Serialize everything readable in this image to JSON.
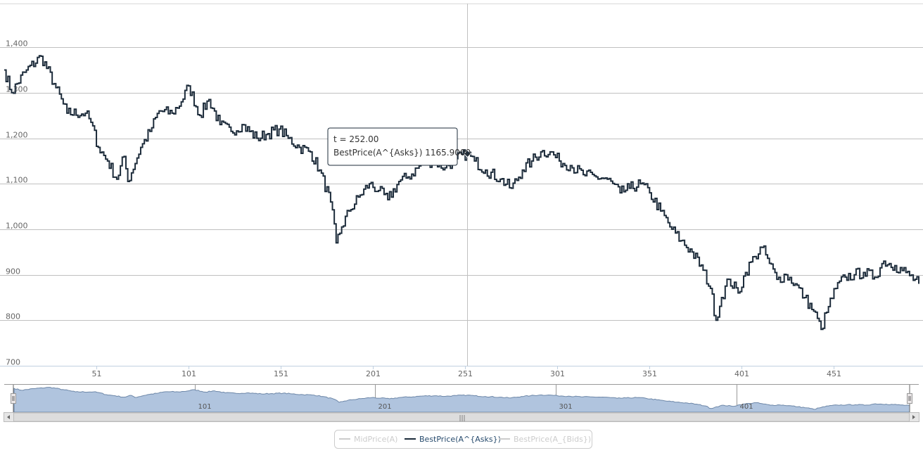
{
  "chart_data": {
    "type": "line",
    "step": true,
    "xlim": [
      1,
      497
    ],
    "ylim": [
      700,
      1450
    ],
    "x_ticks": [
      51,
      101,
      151,
      201,
      251,
      301,
      351,
      401,
      451
    ],
    "x_tick_labels": [
      "51",
      "101",
      "151",
      "201",
      "251",
      "301",
      "351",
      "401",
      "451"
    ],
    "y_ticks": [
      700,
      800,
      900,
      1000,
      1100,
      1200,
      1300,
      1400
    ],
    "y_tick_labels": [
      "700",
      "800",
      "900",
      "1,000",
      "1,100",
      "1,200",
      "1,300",
      "1,400"
    ],
    "grid": true,
    "legend_position": "bottom-center",
    "series": [
      {
        "name": "MidPrice(A)",
        "visible": false,
        "color": "#cccccc"
      },
      {
        "name": "BestPrice(A^{Asks})",
        "visible": true,
        "color": "#1c2b3a",
        "anchors": [
          [
            1,
            1350
          ],
          [
            5,
            1300
          ],
          [
            12,
            1345
          ],
          [
            21,
            1380
          ],
          [
            28,
            1320
          ],
          [
            35,
            1255
          ],
          [
            45,
            1255
          ],
          [
            48,
            1235
          ],
          [
            52,
            1180
          ],
          [
            57,
            1150
          ],
          [
            62,
            1110
          ],
          [
            66,
            1160
          ],
          [
            68,
            1105
          ],
          [
            75,
            1180
          ],
          [
            80,
            1215
          ],
          [
            85,
            1260
          ],
          [
            92,
            1255
          ],
          [
            97,
            1280
          ],
          [
            101,
            1315
          ],
          [
            107,
            1250
          ],
          [
            112,
            1285
          ],
          [
            118,
            1230
          ],
          [
            124,
            1215
          ],
          [
            130,
            1230
          ],
          [
            138,
            1200
          ],
          [
            144,
            1210
          ],
          [
            150,
            1220
          ],
          [
            155,
            1200
          ],
          [
            161,
            1180
          ],
          [
            167,
            1170
          ],
          [
            172,
            1130
          ],
          [
            178,
            1060
          ],
          [
            181,
            970
          ],
          [
            184,
            1005
          ],
          [
            188,
            1040
          ],
          [
            194,
            1075
          ],
          [
            199,
            1100
          ],
          [
            204,
            1085
          ],
          [
            209,
            1065
          ],
          [
            215,
            1105
          ],
          [
            220,
            1115
          ],
          [
            228,
            1145
          ],
          [
            234,
            1150
          ],
          [
            240,
            1135
          ],
          [
            246,
            1155
          ],
          [
            252,
            1166
          ],
          [
            256,
            1150
          ],
          [
            262,
            1130
          ],
          [
            270,
            1110
          ],
          [
            276,
            1090
          ],
          [
            282,
            1130
          ],
          [
            287,
            1150
          ],
          [
            292,
            1170
          ],
          [
            297,
            1170
          ],
          [
            302,
            1150
          ],
          [
            308,
            1140
          ],
          [
            315,
            1120
          ],
          [
            322,
            1115
          ],
          [
            328,
            1110
          ],
          [
            335,
            1080
          ],
          [
            340,
            1090
          ],
          [
            346,
            1100
          ],
          [
            351,
            1080
          ],
          [
            357,
            1040
          ],
          [
            363,
            1000
          ],
          [
            368,
            975
          ],
          [
            374,
            950
          ],
          [
            380,
            910
          ],
          [
            384,
            870
          ],
          [
            387,
            800
          ],
          [
            390,
            850
          ],
          [
            394,
            890
          ],
          [
            399,
            860
          ],
          [
            403,
            905
          ],
          [
            408,
            940
          ],
          [
            412,
            960
          ],
          [
            416,
            925
          ],
          [
            420,
            890
          ],
          [
            425,
            900
          ],
          [
            430,
            880
          ],
          [
            435,
            850
          ],
          [
            440,
            820
          ],
          [
            444,
            780
          ],
          [
            448,
            830
          ],
          [
            452,
            870
          ],
          [
            457,
            895
          ],
          [
            462,
            900
          ],
          [
            467,
            905
          ],
          [
            473,
            895
          ],
          [
            478,
            930
          ],
          [
            484,
            920
          ],
          [
            490,
            905
          ],
          [
            497,
            880
          ]
        ]
      },
      {
        "name": "BestPrice(A_{Bids})",
        "visible": false,
        "color": "#cccccc"
      }
    ],
    "tooltip": {
      "x": 252,
      "y": 1165.9,
      "line1": "t = 252.00",
      "line2": "BestPrice(A^{Asks}) 1165.9000"
    },
    "navigator": {
      "tick_values": [
        101,
        201,
        301,
        401
      ],
      "tick_labels": [
        "101",
        "201",
        "301",
        "401"
      ],
      "scrollbar_grip": "|||"
    }
  }
}
